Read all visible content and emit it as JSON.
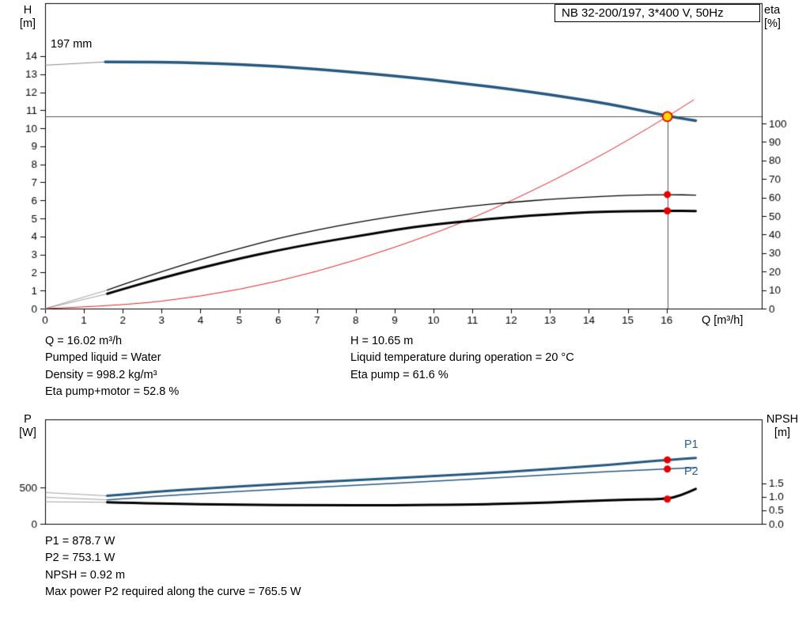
{
  "title_box": "NB 32-200/197, 3*400 V, 50Hz",
  "labels": {
    "impeller": "197 mm",
    "h_axis": [
      "H",
      "[m]"
    ],
    "eta_axis": [
      "eta",
      "[%]"
    ],
    "q_axis": "Q [m³/h]",
    "p_axis": [
      "P",
      "[W]"
    ],
    "npsh_axis": [
      "NPSH",
      "[m]"
    ],
    "p1": "P1",
    "p2": "P2"
  },
  "info_top_left": [
    "Q = 16.02 m³/h",
    "Pumped liquid = Water",
    "Density = 998.2 kg/m³",
    "Eta pump+motor = 52.8 %"
  ],
  "info_top_right": [
    "H = 10.65 m",
    "Liquid temperature during operation = 20 °C",
    "Eta pump = 61.6 %"
  ],
  "info_bottom": [
    "P1 = 878.7 W",
    "P2 = 753.1 W",
    "NPSH = 0.92 m",
    "Max power P2 required along the curve = 765.5 W"
  ],
  "colors": {
    "curve_blue": "#26597f",
    "system_red": "#e02020",
    "marker_red": "#e60000",
    "duty_yellow": "#ffd800",
    "guide_gray": "#555555",
    "lead_gray": "#8a8a8a",
    "black": "#000000"
  },
  "chart_data": [
    {
      "type": "line",
      "title": "NB 32-200/197, 3*400 V, 50Hz",
      "xlabel": "Q [m³/h]",
      "ylabel_left": "H [m]",
      "ylabel_right": "eta [%]",
      "xlim": [
        0,
        18.45
      ],
      "ylim_left": [
        0,
        16.94
      ],
      "ylim_right": [
        0,
        165
      ],
      "grid": false,
      "x_ticks": [
        0,
        1,
        2,
        3,
        4,
        5,
        6,
        7,
        8,
        9,
        10,
        11,
        12,
        13,
        14,
        15,
        16
      ],
      "y_ticks_left": [
        0,
        1,
        2,
        3,
        4,
        5,
        6,
        7,
        8,
        9,
        10,
        11,
        12,
        13,
        14
      ],
      "y_ticks_right": [
        0,
        10,
        20,
        30,
        40,
        50,
        60,
        70,
        80,
        90,
        100
      ],
      "guides": {
        "h": 10.65,
        "v": 16.02
      },
      "series": [
        {
          "name": "head-curve-lead",
          "color": "#8a8a8a",
          "width": 1,
          "axis": "left",
          "points": [
            [
              0,
              13.5
            ],
            [
              1.55,
              13.68
            ]
          ]
        },
        {
          "name": "head-curve-197mm",
          "color": "#26597f",
          "width": 3.5,
          "axis": "left",
          "points": [
            [
              1.55,
              13.68
            ],
            [
              3,
              13.68
            ],
            [
              4,
              13.62
            ],
            [
              5,
              13.54
            ],
            [
              6,
              13.43
            ],
            [
              7,
              13.28
            ],
            [
              8,
              13.1
            ],
            [
              9,
              12.9
            ],
            [
              10,
              12.68
            ],
            [
              11,
              12.43
            ],
            [
              12,
              12.16
            ],
            [
              13,
              11.86
            ],
            [
              14,
              11.54
            ],
            [
              15,
              11.15
            ],
            [
              16.02,
              10.68
            ],
            [
              16.75,
              10.42
            ]
          ]
        },
        {
          "name": "system-curve",
          "color": "#e02020",
          "width": 1,
          "axis": "left",
          "points": [
            [
              0,
              0
            ],
            [
              2,
              0.17
            ],
            [
              4,
              0.66
            ],
            [
              6,
              1.49
            ],
            [
              8,
              2.66
            ],
            [
              10,
              4.15
            ],
            [
              11,
              5.02
            ],
            [
              12,
              5.98
            ],
            [
              13,
              7.02
            ],
            [
              14,
              8.13
            ],
            [
              15,
              9.33
            ],
            [
              16.02,
              10.65
            ],
            [
              16.7,
              11.58
            ]
          ]
        },
        {
          "name": "eta-pump-lead",
          "color": "#8a8a8a",
          "width": 0.8,
          "axis": "right",
          "points": [
            [
              0,
              0
            ],
            [
              1.6,
              10
            ]
          ]
        },
        {
          "name": "eta-pump-curve",
          "color": "#000000",
          "width": 1.3,
          "axis": "right",
          "points": [
            [
              1.6,
              10
            ],
            [
              2,
              13
            ],
            [
              3,
              20
            ],
            [
              4,
              26.5
            ],
            [
              5,
              32.5
            ],
            [
              6,
              38
            ],
            [
              7,
              42.5
            ],
            [
              8,
              46.5
            ],
            [
              9,
              50
            ],
            [
              10,
              53
            ],
            [
              11,
              55.5
            ],
            [
              12,
              57.5
            ],
            [
              13,
              59
            ],
            [
              14,
              60.3
            ],
            [
              15,
              61.2
            ],
            [
              16.02,
              61.6
            ],
            [
              16.75,
              61.3
            ]
          ]
        },
        {
          "name": "eta-pump-motor-lead",
          "color": "#8a8a8a",
          "width": 0.8,
          "axis": "right",
          "points": [
            [
              0,
              0
            ],
            [
              1.6,
              8
            ]
          ]
        },
        {
          "name": "eta-pump-motor-curve",
          "color": "#000000",
          "width": 3,
          "axis": "right",
          "points": [
            [
              1.6,
              8
            ],
            [
              2,
              10.5
            ],
            [
              3,
              16.5
            ],
            [
              4,
              22
            ],
            [
              5,
              27
            ],
            [
              6,
              31.5
            ],
            [
              7,
              35.5
            ],
            [
              8,
              39
            ],
            [
              9,
              42.5
            ],
            [
              10,
              45.5
            ],
            [
              11,
              47.5
            ],
            [
              12,
              49.5
            ],
            [
              13,
              51
            ],
            [
              14,
              52.1
            ],
            [
              15,
              52.6
            ],
            [
              16.02,
              52.8
            ],
            [
              16.75,
              52.7
            ]
          ]
        }
      ],
      "markers": [
        {
          "name": "eta-pump-duty",
          "x": 16.02,
          "y": 61.6,
          "axis": "right",
          "color": "#e60000"
        },
        {
          "name": "eta-pump-motor-duty",
          "x": 16.02,
          "y": 52.8,
          "axis": "right",
          "color": "#e60000"
        }
      ],
      "duty_point": {
        "name": "duty-point",
        "x": 16.02,
        "y": 10.65,
        "fill": "#ffd800",
        "stroke": "#e60000"
      }
    },
    {
      "type": "line",
      "title": "",
      "xlabel": "",
      "ylabel_left": "P [W]",
      "ylabel_right": "NPSH [m]",
      "xlim": [
        0,
        18.45
      ],
      "ylim_left": [
        0,
        1435
      ],
      "ylim_right": [
        0,
        3.88
      ],
      "grid": false,
      "x_ticks": [],
      "y_ticks_left": [
        0,
        500
      ],
      "y_ticks_left_labels": [
        "0",
        "500"
      ],
      "y_ticks_right": [
        0,
        0.5,
        1,
        1.5
      ],
      "y_ticks_right_labels": [
        "0.0",
        "0.5",
        "1.0",
        "1.5"
      ],
      "series": [
        {
          "name": "p1-lead",
          "color": "#8a8a8a",
          "width": 0.8,
          "axis": "left",
          "points": [
            [
              0,
              430
            ],
            [
              1.6,
              385
            ]
          ]
        },
        {
          "name": "p1-curve",
          "color": "#26597f",
          "width": 3,
          "axis": "left",
          "points": [
            [
              1.6,
              385
            ],
            [
              3,
              450
            ],
            [
              4,
              480
            ],
            [
              6,
              545
            ],
            [
              8,
              600
            ],
            [
              10,
              655
            ],
            [
              12,
              715
            ],
            [
              14,
              790
            ],
            [
              15,
              832
            ],
            [
              16.02,
              878.7
            ],
            [
              16.75,
              905
            ]
          ]
        },
        {
          "name": "p2-lead",
          "color": "#8a8a8a",
          "width": 0.8,
          "axis": "left",
          "points": [
            [
              0,
              365
            ],
            [
              1.6,
              330
            ]
          ]
        },
        {
          "name": "p2-curve",
          "color": "#26597f",
          "width": 1.5,
          "axis": "left",
          "points": [
            [
              1.6,
              330
            ],
            [
              3,
              385
            ],
            [
              4,
              415
            ],
            [
              6,
              475
            ],
            [
              8,
              530
            ],
            [
              10,
              585
            ],
            [
              12,
              645
            ],
            [
              14,
              705
            ],
            [
              15,
              730
            ],
            [
              16.02,
              753.1
            ],
            [
              16.75,
              772
            ]
          ]
        },
        {
          "name": "npsh-lead",
          "color": "#8a8a8a",
          "width": 0.8,
          "axis": "right",
          "points": [
            [
              0,
              0.82
            ],
            [
              1.6,
              0.8
            ]
          ]
        },
        {
          "name": "npsh-curve",
          "color": "#000000",
          "width": 3,
          "axis": "right",
          "points": [
            [
              1.6,
              0.8
            ],
            [
              3,
              0.75
            ],
            [
              5,
              0.71
            ],
            [
              7,
              0.69
            ],
            [
              9,
              0.69
            ],
            [
              11,
              0.72
            ],
            [
              12,
              0.75
            ],
            [
              13,
              0.79
            ],
            [
              14,
              0.85
            ],
            [
              15,
              0.9
            ],
            [
              16.02,
              0.92
            ],
            [
              16.4,
              1.08
            ],
            [
              16.75,
              1.3
            ]
          ]
        }
      ],
      "markers": [
        {
          "name": "p1-duty",
          "x": 16.02,
          "y": 878.7,
          "axis": "left",
          "color": "#e60000"
        },
        {
          "name": "p2-duty",
          "x": 16.02,
          "y": 753.1,
          "axis": "left",
          "color": "#e60000"
        },
        {
          "name": "npsh-duty",
          "x": 16.02,
          "y": 0.92,
          "axis": "right",
          "color": "#e60000"
        }
      ]
    }
  ]
}
